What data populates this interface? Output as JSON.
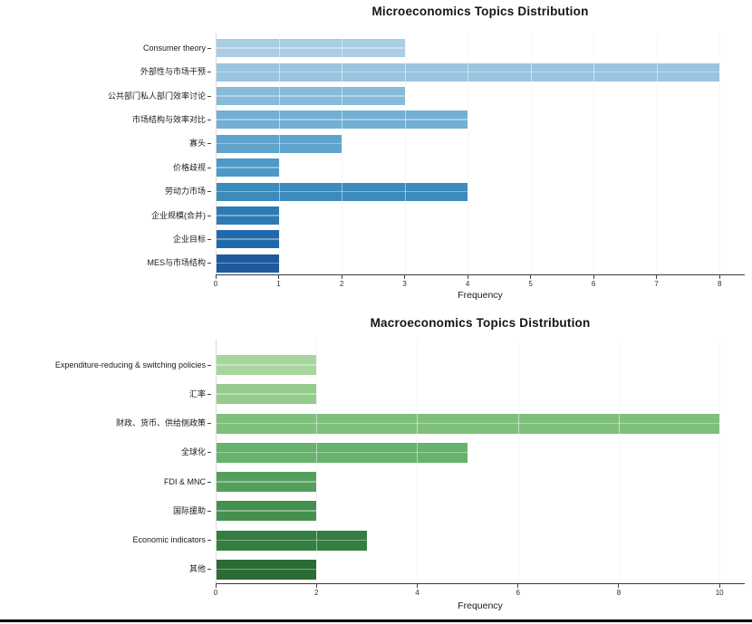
{
  "figure": {
    "background": "#ffffff",
    "bottom_border_color": "#000000"
  },
  "chart_data": [
    {
      "type": "bar",
      "orientation": "horizontal",
      "title": "Microeconomics Topics Distribution",
      "xlabel": "Frequency",
      "categories": [
        "Consumer theory",
        "外部性与市场干预",
        "公共部门私人部门效率讨论",
        "市场结构与效率对比",
        "寡头",
        "价格歧视",
        "劳动力市场",
        "企业规模(合并)",
        "企业目标",
        "MES与市场结构"
      ],
      "values": [
        3,
        8,
        3,
        4,
        2,
        1,
        4,
        1,
        1,
        1
      ],
      "bar_colors": [
        "#a9cde3",
        "#99c5e0",
        "#85bad9",
        "#72afd3",
        "#5fa4cd",
        "#4d98c5",
        "#3d8abd",
        "#2e7bb4",
        "#2269a9",
        "#1e5a9c"
      ],
      "xticks": [
        0,
        1,
        2,
        3,
        4,
        5,
        6,
        7,
        8
      ],
      "xlim": [
        0,
        8.4
      ],
      "grid": "vertical",
      "legend": false
    },
    {
      "type": "bar",
      "orientation": "horizontal",
      "title": "Macroeconomics Topics Distribution",
      "xlabel": "Frequency",
      "categories": [
        "Expenditure-reducing & switching policies",
        "汇率",
        "财政、货币、供给侧政策",
        "全球化",
        "FDI & MNC",
        "国际援助",
        "Economic indicators",
        "其他"
      ],
      "values": [
        2,
        2,
        10,
        5,
        2,
        2,
        3,
        2
      ],
      "bar_colors": [
        "#a6d59e",
        "#95cb8d",
        "#7fbf7c",
        "#67b26c",
        "#549f5e",
        "#43904f",
        "#347e41",
        "#2d6b34"
      ],
      "xticks": [
        0,
        2,
        4,
        6,
        8,
        10
      ],
      "xlim": [
        0,
        10.5
      ],
      "grid": "vertical",
      "legend": false
    }
  ]
}
